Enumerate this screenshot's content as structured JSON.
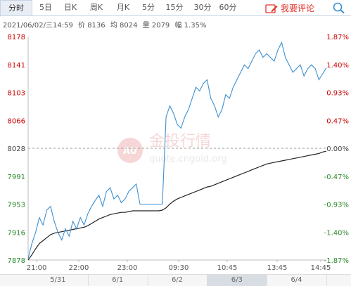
{
  "tabs": [
    {
      "label": "分时",
      "active": true
    },
    {
      "label": "5日"
    },
    {
      "label": "日K"
    },
    {
      "label": "周K"
    },
    {
      "label": "月K"
    },
    {
      "label": "5分"
    },
    {
      "label": "15分"
    },
    {
      "label": "30分"
    },
    {
      "label": "60分"
    }
  ],
  "comment_label": "我要评论",
  "info": {
    "datetime": "2021/06/02/三14:59",
    "price": "价 8136",
    "avg": "均 8024",
    "volume": "量 2079",
    "change": "幅 1.35%"
  },
  "watermark": {
    "logo": "AU",
    "text": "金投行情",
    "url": "quote.cngold.org"
  },
  "colors": {
    "price_line": "#3c8fd0",
    "avg_line": "#222222",
    "up": "#cc0000",
    "down": "#2a8a2a",
    "baseline": "#999999"
  },
  "chart_data": {
    "type": "line",
    "y_left_ticks": [
      "8178",
      "8141",
      "8103",
      "8066",
      "8028",
      "7991",
      "7953",
      "7916",
      "7878"
    ],
    "y_right_ticks": [
      "1.87%",
      "1.40%",
      "0.93%",
      "0.47%",
      "0.00%",
      "-0.47%",
      "-0.93%",
      "-1.40%",
      "-1.87%"
    ],
    "x_ticks": [
      "21:00",
      "22:00",
      "23:00",
      "09:30",
      "10:45",
      "13:45",
      "14:45"
    ],
    "ylim": [
      7878,
      8178
    ],
    "baseline": 8028,
    "series": [
      {
        "type": "price",
        "values": [
          7880,
          7900,
          7915,
          7935,
          7925,
          7945,
          7950,
          7930,
          7915,
          7905,
          7920,
          7910,
          7930,
          7920,
          7935,
          7925,
          7940,
          7950,
          7958,
          7965,
          7950,
          7970,
          7975,
          7960,
          7965,
          7955,
          7960,
          7970,
          7975,
          7980,
          7953,
          7953,
          7953,
          7953,
          7953,
          7953,
          7953,
          8070,
          8085,
          8075,
          8060,
          8055,
          8070,
          8080,
          8095,
          8110,
          8105,
          8115,
          8120,
          8095,
          8085,
          8070,
          8080,
          8100,
          8095,
          8110,
          8120,
          8130,
          8140,
          8135,
          8145,
          8155,
          8160,
          8150,
          8155,
          8150,
          8145,
          8160,
          8170,
          8150,
          8140,
          8130,
          8135,
          8140,
          8125,
          8135,
          8140,
          8135,
          8120,
          8128,
          8136
        ]
      },
      {
        "type": "average",
        "values": [
          7878,
          7885,
          7893,
          7900,
          7904,
          7908,
          7912,
          7914,
          7915,
          7916,
          7917,
          7918,
          7919,
          7920,
          7921,
          7922,
          7924,
          7927,
          7930,
          7933,
          7935,
          7937,
          7939,
          7940,
          7941,
          7942,
          7942,
          7943,
          7944,
          7944,
          7944,
          7944,
          7944,
          7944,
          7944,
          7944,
          7945,
          7948,
          7953,
          7957,
          7960,
          7962,
          7964,
          7966,
          7968,
          7970,
          7972,
          7974,
          7976,
          7977,
          7979,
          7981,
          7983,
          7985,
          7987,
          7989,
          7991,
          7993,
          7995,
          7997,
          7999,
          8001,
          8003,
          8005,
          8007,
          8008,
          8009,
          8010,
          8011,
          8012,
          8013,
          8014,
          8015,
          8016,
          8017,
          8018,
          8019,
          8020,
          8021,
          8023,
          8024
        ]
      }
    ]
  },
  "navigator": {
    "days": [
      "5/31",
      "6/1",
      "6/2",
      "6/3",
      "6/4"
    ],
    "selected": "6/3"
  }
}
